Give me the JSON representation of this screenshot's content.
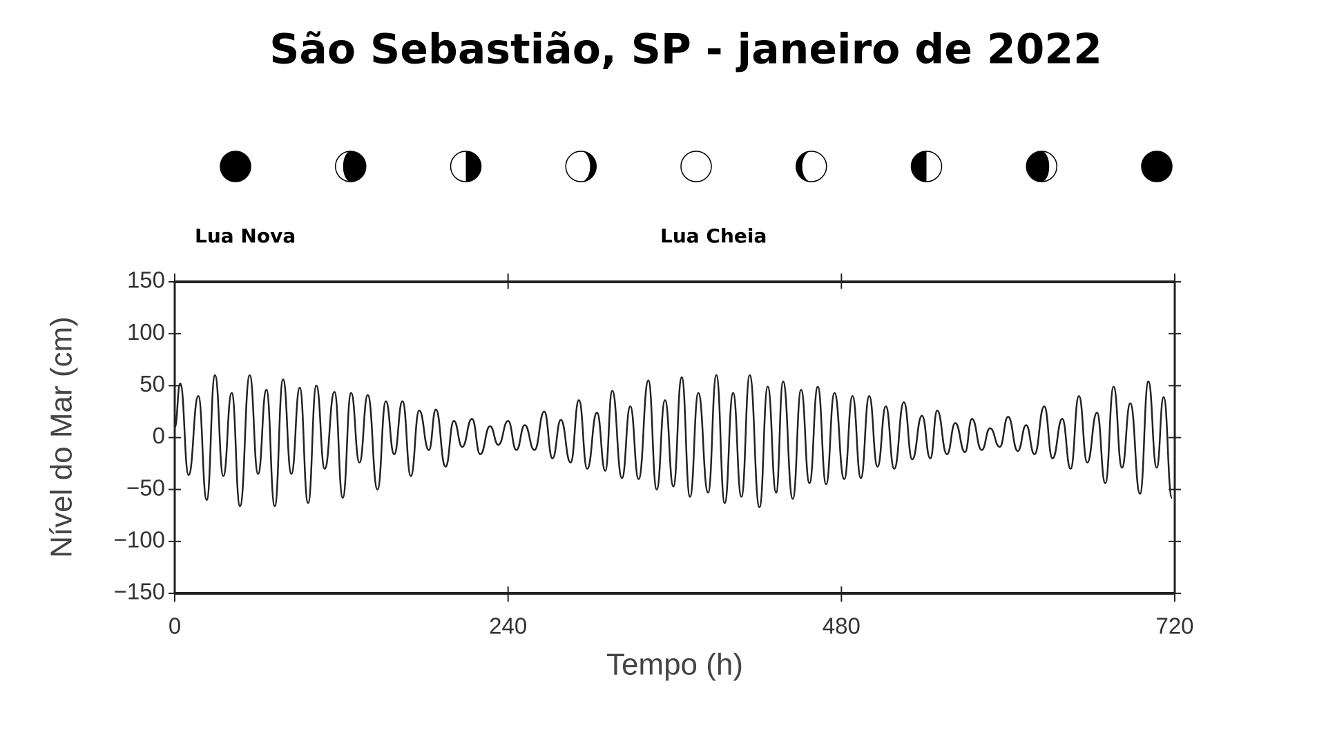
{
  "chart_data": {
    "type": "line",
    "title": "São Sebastião, SP - janeiro de 2022",
    "annotations": [
      "Lua Nova",
      "Lua Cheia"
    ],
    "xlabel": "Tempo (h)",
    "ylabel": "Nível do Mar (cm)",
    "xlim": [
      0,
      720
    ],
    "xticks": [
      0,
      240,
      480,
      720
    ],
    "ylim": [
      -150,
      150
    ],
    "yticks": [
      {
        "value": -150,
        "label": "−150"
      },
      {
        "value": -100,
        "label": "−100"
      },
      {
        "value": -50,
        "label": "−50"
      },
      0,
      50,
      100,
      150
    ],
    "color": "#222222",
    "x": [
      0,
      4,
      10,
      17,
      23,
      29,
      35,
      41,
      47,
      54,
      60,
      66,
      72,
      78,
      84,
      90,
      96,
      102,
      108,
      115,
      121,
      127,
      133,
      139,
      146,
      152,
      158,
      164,
      170,
      176,
      183,
      188,
      195,
      201,
      207,
      214,
      220,
      227,
      233,
      240,
      246,
      252,
      259,
      266,
      272,
      278,
      285,
      291,
      297,
      304,
      310,
      315,
      322,
      328,
      334,
      341,
      347,
      353,
      359,
      365,
      371,
      377,
      384,
      390,
      396,
      402,
      408,
      414,
      421,
      427,
      433,
      438,
      445,
      451,
      457,
      463,
      469,
      475,
      482,
      488,
      494,
      500,
      506,
      512,
      518,
      525,
      531,
      538,
      544,
      549,
      556,
      562,
      569,
      574,
      581,
      587,
      594,
      600,
      607,
      613,
      619,
      626,
      632,
      639,
      645,
      651,
      657,
      664,
      670,
      676,
      682,
      688,
      695,
      701,
      707,
      712,
      718
    ],
    "values": [
      10,
      52,
      -36,
      40,
      -60,
      60,
      -37,
      43,
      -66,
      60,
      -35,
      46,
      -66,
      56,
      -35,
      48,
      -63,
      50,
      -30,
      44,
      -58,
      43,
      -24,
      41,
      -50,
      35,
      -16,
      35,
      -37,
      26,
      -12,
      27,
      -28,
      16,
      -9,
      18,
      -16,
      11,
      -7,
      16,
      -12,
      12,
      -12,
      25,
      -20,
      17,
      -24,
      36,
      -30,
      24,
      -32,
      45,
      -39,
      30,
      -40,
      55,
      -50,
      36,
      -47,
      58,
      -57,
      43,
      -53,
      60,
      -63,
      43,
      -57,
      60,
      -67,
      49,
      -53,
      54,
      -59,
      46,
      -44,
      49,
      -45,
      43,
      -40,
      40,
      -39,
      40,
      -28,
      30,
      -30,
      34,
      -21,
      21,
      -20,
      26,
      -16,
      14,
      -14,
      18,
      -12,
      9,
      -9,
      20,
      -13,
      12,
      -16,
      30,
      -20,
      18,
      -30,
      40,
      -24,
      24,
      -44,
      49,
      -29,
      33,
      -54,
      54,
      -29,
      39,
      -58
    ]
  }
}
